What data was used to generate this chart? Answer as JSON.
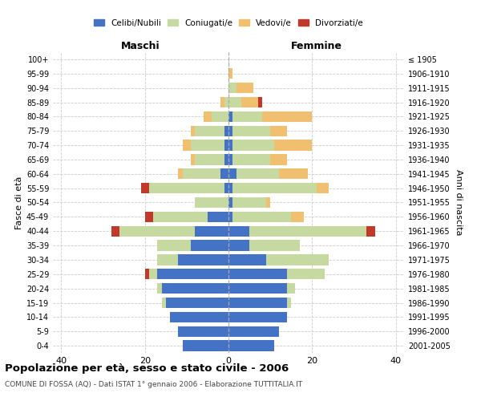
{
  "age_groups": [
    "100+",
    "95-99",
    "90-94",
    "85-89",
    "80-84",
    "75-79",
    "70-74",
    "65-69",
    "60-64",
    "55-59",
    "50-54",
    "45-49",
    "40-44",
    "35-39",
    "30-34",
    "25-29",
    "20-24",
    "15-19",
    "10-14",
    "5-9",
    "0-4"
  ],
  "birth_years": [
    "≤ 1905",
    "1906-1910",
    "1911-1915",
    "1916-1920",
    "1921-1925",
    "1926-1930",
    "1931-1935",
    "1936-1940",
    "1941-1945",
    "1946-1950",
    "1951-1955",
    "1956-1960",
    "1961-1965",
    "1966-1970",
    "1971-1975",
    "1976-1980",
    "1981-1985",
    "1986-1990",
    "1991-1995",
    "1996-2000",
    "2001-2005"
  ],
  "maschi": {
    "celibi": [
      0,
      0,
      0,
      0,
      0,
      1,
      1,
      1,
      2,
      1,
      0,
      5,
      8,
      9,
      12,
      17,
      16,
      15,
      14,
      12,
      11
    ],
    "coniugati": [
      0,
      0,
      0,
      1,
      4,
      7,
      8,
      7,
      9,
      18,
      8,
      13,
      18,
      8,
      5,
      2,
      1,
      1,
      0,
      0,
      0
    ],
    "vedovi": [
      0,
      0,
      0,
      1,
      2,
      1,
      2,
      1,
      1,
      0,
      0,
      0,
      0,
      0,
      0,
      0,
      0,
      0,
      0,
      0,
      0
    ],
    "divorziati": [
      0,
      0,
      0,
      0,
      0,
      0,
      0,
      0,
      0,
      2,
      0,
      2,
      2,
      0,
      0,
      1,
      0,
      0,
      0,
      0,
      0
    ]
  },
  "femmine": {
    "nubili": [
      0,
      0,
      0,
      0,
      1,
      1,
      1,
      1,
      2,
      1,
      1,
      1,
      5,
      5,
      9,
      14,
      14,
      14,
      14,
      12,
      11
    ],
    "coniugate": [
      0,
      0,
      2,
      3,
      7,
      9,
      10,
      9,
      10,
      20,
      8,
      14,
      28,
      12,
      15,
      9,
      2,
      1,
      0,
      0,
      0
    ],
    "vedove": [
      0,
      1,
      4,
      4,
      12,
      4,
      9,
      4,
      7,
      3,
      1,
      3,
      0,
      0,
      0,
      0,
      0,
      0,
      0,
      0,
      0
    ],
    "divorziate": [
      0,
      0,
      0,
      1,
      0,
      0,
      0,
      0,
      0,
      0,
      0,
      0,
      2,
      0,
      0,
      0,
      0,
      0,
      0,
      0,
      0
    ]
  },
  "colors": {
    "celibi": "#4472C4",
    "coniugati": "#c5d9a0",
    "vedovi": "#f0c070",
    "divorziati": "#c0392b"
  },
  "xlim": 42,
  "title": "Popolazione per età, sesso e stato civile - 2006",
  "subtitle": "COMUNE DI FOSSA (AQ) - Dati ISTAT 1° gennaio 2006 - Elaborazione TUTTITALIA.IT",
  "ylabel_left": "Fasce di età",
  "ylabel_right": "Anni di nascita",
  "xlabel_left": "Maschi",
  "xlabel_right": "Femmine"
}
